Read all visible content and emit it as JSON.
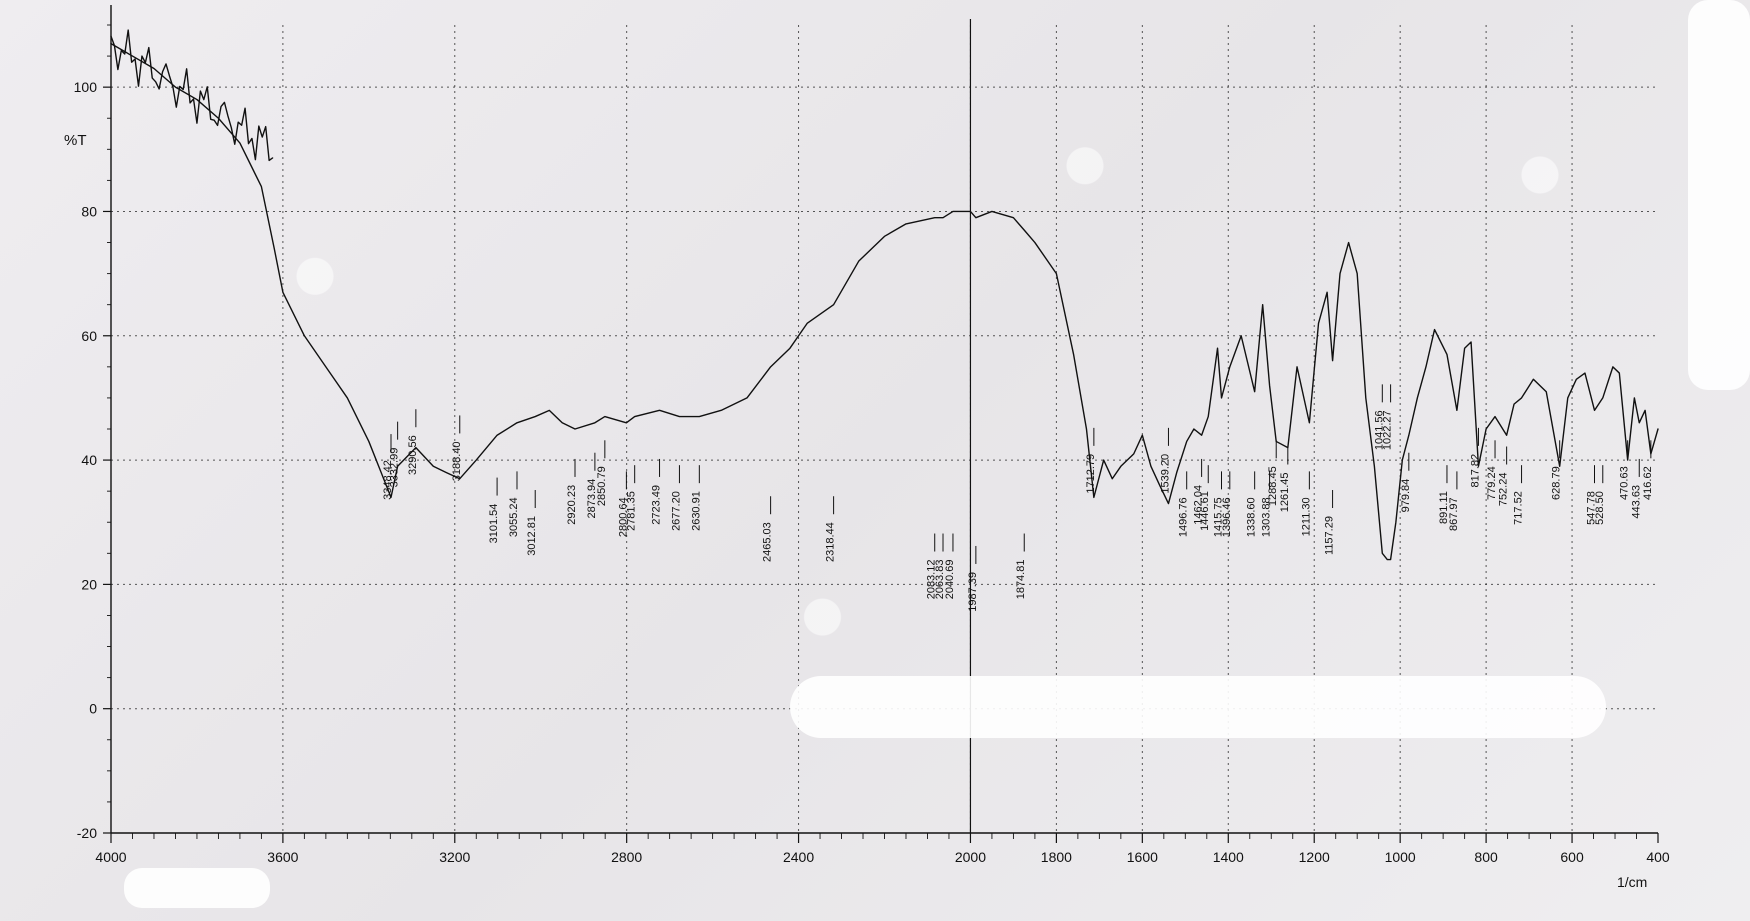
{
  "chart_data": {
    "type": "line",
    "title": "",
    "xlabel": "1/cm",
    "ylabel": "%T",
    "xlim": [
      4000,
      400
    ],
    "ylim": [
      -20,
      110
    ],
    "x_ticks": [
      4000,
      3600,
      3200,
      2800,
      2400,
      2000,
      1600,
      1200,
      800,
      600,
      400
    ],
    "x_ticks_full": [
      4000,
      3600,
      3200,
      2800,
      2400,
      2000,
      1800,
      1600,
      1400,
      1200,
      1000,
      800,
      600,
      400
    ],
    "y_ticks": [
      100,
      80,
      60,
      40,
      20,
      0,
      -20
    ],
    "grid": true,
    "series": [
      {
        "values": [
          [
            4000,
            107
          ],
          [
            3950,
            105
          ],
          [
            3900,
            103
          ],
          [
            3850,
            100
          ],
          [
            3800,
            98
          ],
          [
            3750,
            95
          ],
          [
            3700,
            91
          ],
          [
            3650,
            84
          ],
          [
            3620,
            74
          ],
          [
            3600,
            67
          ],
          [
            3550,
            60
          ],
          [
            3500,
            55
          ],
          [
            3450,
            50
          ],
          [
            3400,
            43
          ],
          [
            3348.42,
            34
          ],
          [
            3332.99,
            39
          ],
          [
            3290.56,
            42
          ],
          [
            3250,
            39
          ],
          [
            3220,
            38
          ],
          [
            3188.4,
            37
          ],
          [
            3150,
            40
          ],
          [
            3101.54,
            44
          ],
          [
            3055.24,
            46
          ],
          [
            3012.81,
            47
          ],
          [
            2980,
            48
          ],
          [
            2950,
            46
          ],
          [
            2920.23,
            45
          ],
          [
            2873.94,
            46
          ],
          [
            2850.79,
            47
          ],
          [
            2800.64,
            46
          ],
          [
            2781.35,
            47
          ],
          [
            2723.49,
            48
          ],
          [
            2677.2,
            47
          ],
          [
            2630.91,
            47
          ],
          [
            2580,
            48
          ],
          [
            2520,
            50
          ],
          [
            2465.03,
            55
          ],
          [
            2420,
            58
          ],
          [
            2380,
            62
          ],
          [
            2318.44,
            65
          ],
          [
            2260,
            72
          ],
          [
            2200,
            76
          ],
          [
            2150,
            78
          ],
          [
            2083.12,
            79
          ],
          [
            2063.83,
            79
          ],
          [
            2040.69,
            80
          ],
          [
            2000,
            80
          ],
          [
            1987.39,
            79
          ],
          [
            1950,
            80
          ],
          [
            1900,
            79
          ],
          [
            1874.81,
            77
          ],
          [
            1850,
            75
          ],
          [
            1800,
            70
          ],
          [
            1760,
            57
          ],
          [
            1730,
            45
          ],
          [
            1712.79,
            34
          ],
          [
            1690,
            40
          ],
          [
            1670,
            37
          ],
          [
            1650,
            39
          ],
          [
            1620,
            41
          ],
          [
            1600,
            44
          ],
          [
            1580,
            39
          ],
          [
            1560,
            36
          ],
          [
            1539.2,
            33
          ],
          [
            1520,
            38
          ],
          [
            1496.76,
            43
          ],
          [
            1480,
            45
          ],
          [
            1462.04,
            44
          ],
          [
            1446.61,
            47
          ],
          [
            1425,
            58
          ],
          [
            1415.75,
            50
          ],
          [
            1396.46,
            55
          ],
          [
            1370,
            60
          ],
          [
            1338.6,
            51
          ],
          [
            1320,
            65
          ],
          [
            1303.88,
            52
          ],
          [
            1288.45,
            43
          ],
          [
            1261.45,
            42
          ],
          [
            1240,
            55
          ],
          [
            1211.3,
            46
          ],
          [
            1190,
            62
          ],
          [
            1170,
            67
          ],
          [
            1157.29,
            56
          ],
          [
            1140,
            70
          ],
          [
            1120,
            75
          ],
          [
            1100,
            70
          ],
          [
            1080,
            50
          ],
          [
            1060,
            39
          ],
          [
            1041.56,
            25
          ],
          [
            1030,
            24
          ],
          [
            1022.27,
            24
          ],
          [
            1010,
            30
          ],
          [
            995,
            40
          ],
          [
            979.84,
            44
          ],
          [
            960,
            50
          ],
          [
            940,
            55
          ],
          [
            920,
            61
          ],
          [
            891.11,
            57
          ],
          [
            867.97,
            48
          ],
          [
            850,
            58
          ],
          [
            835,
            59
          ],
          [
            817.82,
            39
          ],
          [
            800,
            45
          ],
          [
            779.24,
            47
          ],
          [
            752.24,
            44
          ],
          [
            735,
            49
          ],
          [
            717.52,
            50
          ],
          [
            690,
            53
          ],
          [
            660,
            51
          ],
          [
            628.79,
            39
          ],
          [
            610,
            50
          ],
          [
            590,
            53
          ],
          [
            570,
            54
          ],
          [
            547.78,
            48
          ],
          [
            528.5,
            50
          ],
          [
            505,
            55
          ],
          [
            490,
            54
          ],
          [
            470.63,
            40
          ],
          [
            455,
            50
          ],
          [
            443.63,
            46
          ],
          [
            430,
            48
          ],
          [
            416.62,
            41
          ],
          [
            400,
            45
          ]
        ]
      }
    ],
    "peak_labels": [
      "3348.42",
      "3332.99",
      "3290.56",
      "3188.40",
      "3101.54",
      "3055.24",
      "3012.81",
      "2920.23",
      "2873.94",
      "2850.79",
      "2800.64",
      "2781.35",
      "2723.49",
      "2677.20",
      "2630.91",
      "2465.03",
      "2318.44",
      "2083.12",
      "2063.83",
      "2040.69",
      "1987.39",
      "1874.81",
      "1712.79",
      "1539.20",
      "1496.76",
      "1462.04",
      "1446.61",
      "1415.75",
      "1396.46",
      "1338.60",
      "1303.88",
      "1288.45",
      "1261.45",
      "1211.30",
      "1157.29",
      "1041.56",
      "1022.27",
      "979.84",
      "891.11",
      "867.97",
      "817.82",
      "779.24",
      "752.24",
      "717.52",
      "628.79",
      "547.78",
      "528.50",
      "470.63",
      "443.63",
      "416.62"
    ],
    "peak_label_positions_x": [
      3348.42,
      3332.99,
      3290.56,
      3188.4,
      3101.54,
      3055.24,
      3012.81,
      2920.23,
      2873.94,
      2850.79,
      2800.64,
      2781.35,
      2723.49,
      2677.2,
      2630.91,
      2465.03,
      2318.44,
      2083.12,
      2063.83,
      2040.69,
      1987.39,
      1874.81,
      1712.79,
      1539.2,
      1496.76,
      1462.04,
      1446.61,
      1415.75,
      1396.46,
      1338.6,
      1303.88,
      1288.45,
      1261.45,
      1211.3,
      1157.29,
      1041.56,
      1022.27,
      979.84,
      891.11,
      867.97,
      817.82,
      779.24,
      752.24,
      717.52,
      628.79,
      547.78,
      528.5,
      470.63,
      443.63,
      416.62
    ]
  },
  "colors": {
    "paper": "#eceaed",
    "ink": "#111111"
  }
}
